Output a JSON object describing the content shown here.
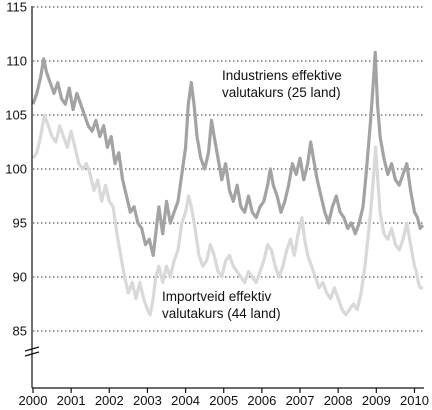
{
  "chart_data": {
    "type": "line",
    "title": "",
    "xlabel": "",
    "ylabel": "",
    "xlim": [
      2000.0,
      2010.25
    ],
    "ylim": [
      85,
      115
    ],
    "y_axis_break": true,
    "grid": "horizontal dotted",
    "x_ticks": [
      2000,
      2001,
      2002,
      2003,
      2004,
      2005,
      2006,
      2007,
      2008,
      2009,
      2010
    ],
    "x_tick_labels": [
      "2000",
      "2001",
      "2002",
      "2003",
      "2004",
      "2005",
      "2006",
      "2007",
      "2008",
      "2009",
      "2010"
    ],
    "y_ticks": [
      85,
      90,
      95,
      100,
      105,
      110,
      115
    ],
    "y_tick_labels": [
      "85",
      "90",
      "95",
      "100",
      "105",
      "110",
      "115"
    ],
    "annotations": [
      {
        "lines": [
          "Industriens effektive",
          "valutakurs (25 land)"
        ],
        "series": 0
      },
      {
        "lines": [
          "Importveid effektiv",
          "valutakurs (44 land)"
        ],
        "series": 1
      }
    ],
    "series": [
      {
        "name": "Industriens effektive valutakurs (25 land)",
        "color": "#a3a3a3",
        "points": [
          [
            2000.0,
            106.0
          ],
          [
            2000.1,
            107.0
          ],
          [
            2000.2,
            108.5
          ],
          [
            2000.28,
            110.2
          ],
          [
            2000.35,
            109.0
          ],
          [
            2000.45,
            108.0
          ],
          [
            2000.55,
            107.0
          ],
          [
            2000.65,
            108.0
          ],
          [
            2000.75,
            106.5
          ],
          [
            2000.85,
            106.0
          ],
          [
            2000.95,
            107.5
          ],
          [
            2001.05,
            105.5
          ],
          [
            2001.15,
            107.0
          ],
          [
            2001.25,
            106.0
          ],
          [
            2001.35,
            105.0
          ],
          [
            2001.45,
            104.0
          ],
          [
            2001.55,
            103.5
          ],
          [
            2001.65,
            104.5
          ],
          [
            2001.75,
            103.0
          ],
          [
            2001.85,
            104.0
          ],
          [
            2001.95,
            102.0
          ],
          [
            2002.05,
            103.0
          ],
          [
            2002.15,
            100.5
          ],
          [
            2002.25,
            101.5
          ],
          [
            2002.35,
            99.0
          ],
          [
            2002.45,
            97.5
          ],
          [
            2002.55,
            96.0
          ],
          [
            2002.65,
            96.5
          ],
          [
            2002.75,
            95.0
          ],
          [
            2002.85,
            94.5
          ],
          [
            2002.95,
            93.0
          ],
          [
            2003.05,
            93.5
          ],
          [
            2003.15,
            92.0
          ],
          [
            2003.2,
            93.5
          ],
          [
            2003.3,
            96.5
          ],
          [
            2003.4,
            94.0
          ],
          [
            2003.5,
            97.0
          ],
          [
            2003.6,
            95.0
          ],
          [
            2003.7,
            96.0
          ],
          [
            2003.8,
            97.0
          ],
          [
            2003.9,
            99.5
          ],
          [
            2004.0,
            102.0
          ],
          [
            2004.07,
            106.0
          ],
          [
            2004.15,
            108.0
          ],
          [
            2004.22,
            106.0
          ],
          [
            2004.3,
            103.0
          ],
          [
            2004.4,
            101.0
          ],
          [
            2004.5,
            100.0
          ],
          [
            2004.6,
            101.5
          ],
          [
            2004.68,
            104.5
          ],
          [
            2004.75,
            103.0
          ],
          [
            2004.85,
            101.0
          ],
          [
            2004.95,
            99.0
          ],
          [
            2005.05,
            100.5
          ],
          [
            2005.15,
            98.0
          ],
          [
            2005.25,
            97.0
          ],
          [
            2005.35,
            98.5
          ],
          [
            2005.45,
            96.5
          ],
          [
            2005.55,
            96.0
          ],
          [
            2005.65,
            97.5
          ],
          [
            2005.75,
            96.0
          ],
          [
            2005.85,
            95.5
          ],
          [
            2005.95,
            96.5
          ],
          [
            2006.05,
            97.0
          ],
          [
            2006.15,
            98.5
          ],
          [
            2006.22,
            100.0
          ],
          [
            2006.3,
            98.5
          ],
          [
            2006.4,
            97.5
          ],
          [
            2006.5,
            96.0
          ],
          [
            2006.6,
            97.0
          ],
          [
            2006.7,
            98.5
          ],
          [
            2006.8,
            100.5
          ],
          [
            2006.9,
            99.5
          ],
          [
            2007.0,
            101.0
          ],
          [
            2007.1,
            99.0
          ],
          [
            2007.2,
            100.5
          ],
          [
            2007.28,
            102.5
          ],
          [
            2007.35,
            101.0
          ],
          [
            2007.45,
            99.0
          ],
          [
            2007.55,
            97.5
          ],
          [
            2007.65,
            96.0
          ],
          [
            2007.75,
            95.0
          ],
          [
            2007.85,
            96.5
          ],
          [
            2007.95,
            97.5
          ],
          [
            2008.05,
            96.0
          ],
          [
            2008.15,
            95.5
          ],
          [
            2008.25,
            94.5
          ],
          [
            2008.35,
            95.0
          ],
          [
            2008.45,
            94.0
          ],
          [
            2008.55,
            95.0
          ],
          [
            2008.65,
            96.5
          ],
          [
            2008.72,
            99.0
          ],
          [
            2008.78,
            101.5
          ],
          [
            2008.85,
            104.5
          ],
          [
            2008.92,
            108.0
          ],
          [
            2008.97,
            110.8
          ],
          [
            2009.03,
            106.0
          ],
          [
            2009.1,
            103.0
          ],
          [
            2009.2,
            101.0
          ],
          [
            2009.3,
            99.5
          ],
          [
            2009.4,
            100.5
          ],
          [
            2009.5,
            99.0
          ],
          [
            2009.6,
            98.5
          ],
          [
            2009.7,
            99.5
          ],
          [
            2009.8,
            100.5
          ],
          [
            2009.9,
            98.0
          ],
          [
            2010.0,
            96.0
          ],
          [
            2010.08,
            95.5
          ],
          [
            2010.15,
            94.5
          ],
          [
            2010.22,
            94.8
          ]
        ]
      },
      {
        "name": "Importveid effektiv valutakurs (44 land)",
        "color": "#d9d9d9",
        "points": [
          [
            2000.0,
            101.0
          ],
          [
            2000.1,
            101.5
          ],
          [
            2000.2,
            103.0
          ],
          [
            2000.3,
            105.0
          ],
          [
            2000.4,
            104.0
          ],
          [
            2000.5,
            103.0
          ],
          [
            2000.6,
            102.5
          ],
          [
            2000.7,
            104.0
          ],
          [
            2000.8,
            103.0
          ],
          [
            2000.9,
            102.0
          ],
          [
            2001.0,
            103.5
          ],
          [
            2001.1,
            102.0
          ],
          [
            2001.2,
            100.5
          ],
          [
            2001.3,
            100.0
          ],
          [
            2001.4,
            100.5
          ],
          [
            2001.5,
            99.5
          ],
          [
            2001.6,
            98.0
          ],
          [
            2001.7,
            99.0
          ],
          [
            2001.8,
            97.0
          ],
          [
            2001.9,
            98.5
          ],
          [
            2002.0,
            97.0
          ],
          [
            2002.1,
            96.5
          ],
          [
            2002.2,
            94.0
          ],
          [
            2002.3,
            92.0
          ],
          [
            2002.4,
            90.0
          ],
          [
            2002.5,
            88.5
          ],
          [
            2002.6,
            89.5
          ],
          [
            2002.7,
            88.0
          ],
          [
            2002.8,
            89.5
          ],
          [
            2002.9,
            88.0
          ],
          [
            2003.0,
            87.0
          ],
          [
            2003.07,
            86.5
          ],
          [
            2003.15,
            88.0
          ],
          [
            2003.22,
            90.0
          ],
          [
            2003.3,
            91.0
          ],
          [
            2003.4,
            89.5
          ],
          [
            2003.5,
            91.0
          ],
          [
            2003.6,
            90.0
          ],
          [
            2003.7,
            91.5
          ],
          [
            2003.8,
            92.5
          ],
          [
            2003.9,
            95.0
          ],
          [
            2004.0,
            96.0
          ],
          [
            2004.08,
            97.5
          ],
          [
            2004.15,
            96.5
          ],
          [
            2004.25,
            94.5
          ],
          [
            2004.35,
            92.0
          ],
          [
            2004.45,
            91.0
          ],
          [
            2004.55,
            91.5
          ],
          [
            2004.65,
            93.0
          ],
          [
            2004.75,
            92.0
          ],
          [
            2004.85,
            90.5
          ],
          [
            2004.95,
            90.0
          ],
          [
            2005.05,
            91.5
          ],
          [
            2005.15,
            92.0
          ],
          [
            2005.25,
            91.0
          ],
          [
            2005.35,
            90.5
          ],
          [
            2005.45,
            90.0
          ],
          [
            2005.55,
            89.5
          ],
          [
            2005.65,
            90.5
          ],
          [
            2005.75,
            90.0
          ],
          [
            2005.85,
            89.5
          ],
          [
            2005.95,
            90.5
          ],
          [
            2006.05,
            91.5
          ],
          [
            2006.15,
            93.0
          ],
          [
            2006.25,
            92.5
          ],
          [
            2006.35,
            91.0
          ],
          [
            2006.45,
            90.0
          ],
          [
            2006.55,
            91.0
          ],
          [
            2006.65,
            92.5
          ],
          [
            2006.75,
            93.5
          ],
          [
            2006.85,
            92.0
          ],
          [
            2006.95,
            94.0
          ],
          [
            2007.05,
            95.5
          ],
          [
            2007.12,
            93.5
          ],
          [
            2007.2,
            92.0
          ],
          [
            2007.3,
            91.0
          ],
          [
            2007.4,
            90.0
          ],
          [
            2007.5,
            89.0
          ],
          [
            2007.6,
            89.5
          ],
          [
            2007.7,
            88.5
          ],
          [
            2007.8,
            88.0
          ],
          [
            2007.9,
            89.0
          ],
          [
            2008.0,
            88.0
          ],
          [
            2008.1,
            87.0
          ],
          [
            2008.2,
            86.5
          ],
          [
            2008.3,
            87.0
          ],
          [
            2008.4,
            87.5
          ],
          [
            2008.5,
            87.0
          ],
          [
            2008.6,
            88.5
          ],
          [
            2008.7,
            91.0
          ],
          [
            2008.78,
            93.5
          ],
          [
            2008.85,
            96.0
          ],
          [
            2008.92,
            99.0
          ],
          [
            2008.98,
            102.0
          ],
          [
            2009.04,
            99.0
          ],
          [
            2009.1,
            96.0
          ],
          [
            2009.2,
            94.0
          ],
          [
            2009.3,
            93.5
          ],
          [
            2009.4,
            94.5
          ],
          [
            2009.5,
            93.0
          ],
          [
            2009.6,
            92.5
          ],
          [
            2009.7,
            93.5
          ],
          [
            2009.8,
            95.0
          ],
          [
            2009.9,
            93.0
          ],
          [
            2010.0,
            91.0
          ],
          [
            2010.05,
            90.5
          ],
          [
            2010.1,
            89.5
          ],
          [
            2010.15,
            89.0
          ],
          [
            2010.22,
            89.0
          ]
        ]
      }
    ]
  }
}
